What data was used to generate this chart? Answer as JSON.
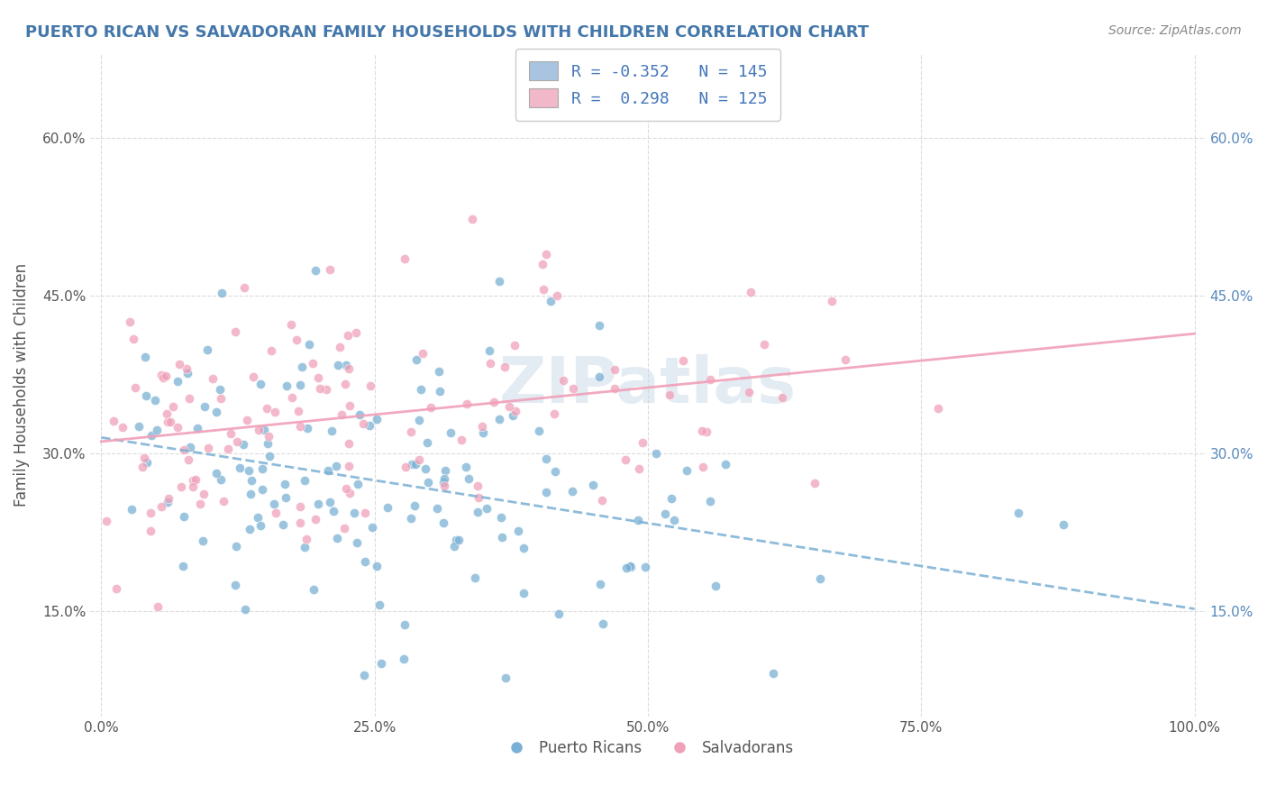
{
  "title": "PUERTO RICAN VS SALVADORAN FAMILY HOUSEHOLDS WITH CHILDREN CORRELATION CHART",
  "source": "Source: ZipAtlas.com",
  "ylabel": "Family Households with Children",
  "xlabel_ticks": [
    "0.0%",
    "100.0%"
  ],
  "ytick_labels": [
    "15.0%",
    "30.0%",
    "45.0%",
    "60.0%"
  ],
  "ytick_values": [
    0.15,
    0.3,
    0.45,
    0.6
  ],
  "xtick_values": [
    0.0,
    1.0
  ],
  "watermark": "ZIPatlas",
  "legend_entries": [
    {
      "label": "R = -0.352   N = 145",
      "color": "#a8c4e0"
    },
    {
      "label": "R =  0.298   N = 125",
      "color": "#f0b8c8"
    }
  ],
  "legend_labels_bottom": [
    "Puerto Ricans",
    "Salvadorans"
  ],
  "pr_R": -0.352,
  "pr_N": 145,
  "salv_R": 0.298,
  "salv_N": 125,
  "blue_color": "#7ab0d4",
  "pink_color": "#f0a0b8",
  "title_color": "#444444",
  "axis_color": "#888888",
  "grid_color": "#cccccc",
  "background_color": "#ffffff",
  "title_fontsize": 13,
  "source_fontsize": 10,
  "watermark_color": "#c8d8e8",
  "watermark_alpha": 0.5
}
